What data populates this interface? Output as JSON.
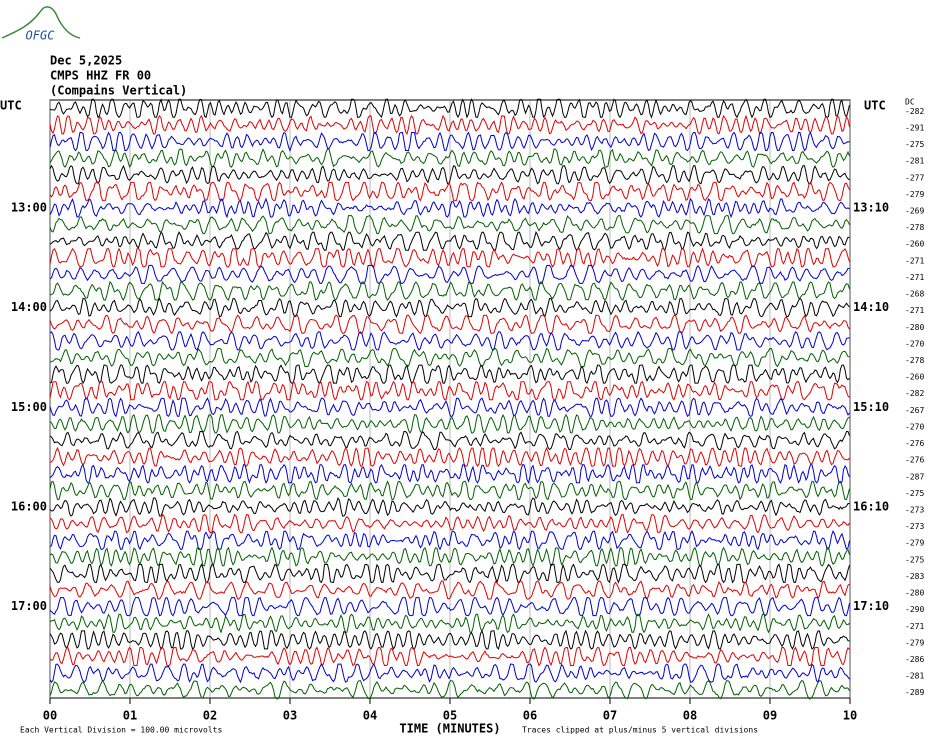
{
  "logo": "OFGC",
  "chart_data": {
    "type": "helicorder",
    "title_lines": [
      "Dec 5,2025",
      "CMPS HHZ FR 00",
      "(Compains Vertical)"
    ],
    "left_axis_title": "UTC",
    "right_axis_title": "UTC",
    "dc_title": "DC",
    "left_labels": [
      null,
      null,
      null,
      null,
      null,
      null,
      "13:00",
      null,
      null,
      null,
      null,
      null,
      "14:00",
      null,
      null,
      null,
      null,
      null,
      "15:00",
      null,
      null,
      null,
      null,
      null,
      "16:00",
      null,
      null,
      null,
      null,
      null,
      "17:00",
      null,
      null,
      null,
      null,
      null
    ],
    "right_labels": [
      null,
      null,
      null,
      null,
      null,
      null,
      "13:10",
      null,
      null,
      null,
      null,
      null,
      "14:10",
      null,
      null,
      null,
      null,
      null,
      "15:10",
      null,
      null,
      null,
      null,
      null,
      "16:10",
      null,
      null,
      null,
      null,
      null,
      "17:10",
      null,
      null,
      null,
      null,
      null
    ],
    "dc_values": [
      -282,
      -291,
      -275,
      -281,
      -277,
      -279,
      -269,
      -278,
      -260,
      -271,
      -271,
      -268,
      -271,
      -280,
      -270,
      -278,
      -260,
      -282,
      -267,
      -270,
      -276,
      -276,
      -287,
      -275,
      -273,
      -273,
      -279,
      -275,
      -283,
      -280,
      -290,
      -271,
      -279,
      -286,
      -281,
      -289
    ],
    "trace_colors": [
      "#000000",
      "#e00000",
      "#0000d0",
      "#006000"
    ],
    "xlim": [
      0,
      10
    ],
    "xticks": [
      {
        "value": 0,
        "label": "00"
      },
      {
        "value": 1,
        "label": "01"
      },
      {
        "value": 2,
        "label": "02"
      },
      {
        "value": 3,
        "label": "03"
      },
      {
        "value": 4,
        "label": "04"
      },
      {
        "value": 5,
        "label": "05"
      },
      {
        "value": 6,
        "label": "06"
      },
      {
        "value": 7,
        "label": "07"
      },
      {
        "value": 8,
        "label": "08"
      },
      {
        "value": 9,
        "label": "09"
      },
      {
        "value": 10,
        "label": "10"
      }
    ],
    "x_axis_label": "TIME (MINUTES)",
    "grid": true,
    "footer_left": "Each Vertical Division =  100.00 microvolts",
    "footer_right": "Traces clipped at plus/minus 5 vertical divisions"
  }
}
